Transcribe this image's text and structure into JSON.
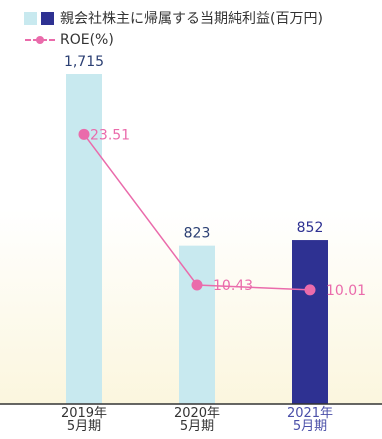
{
  "colors": {
    "bar_light": "#c8e9ef",
    "bar_dark": "#2e3192",
    "line": "#ea6bab",
    "axis": "#333333",
    "highlight_text": "#4a4fa8",
    "bg_bottom": "#fbf6de"
  },
  "legend": {
    "bar_label": "親会社株主に帰属する当期純利益(百万円)",
    "line_label": "ROE(%)"
  },
  "chart_data": {
    "type": "bar",
    "categories": [
      {
        "year": "2019年",
        "period": "5月期"
      },
      {
        "year": "2020年",
        "period": "5月期"
      },
      {
        "year": "2021年",
        "period": "5月期"
      }
    ],
    "series": [
      {
        "name": "親会社株主に帰属する当期純利益(百万円)",
        "type": "bar",
        "values": [
          1715,
          823,
          852
        ],
        "labels": [
          "1,715",
          "823",
          "852"
        ],
        "highlight_index": 2
      },
      {
        "name": "ROE(%)",
        "type": "line",
        "values": [
          23.51,
          10.43,
          10.01
        ],
        "labels": [
          "23.51",
          "10.43",
          "10.01"
        ]
      }
    ]
  }
}
